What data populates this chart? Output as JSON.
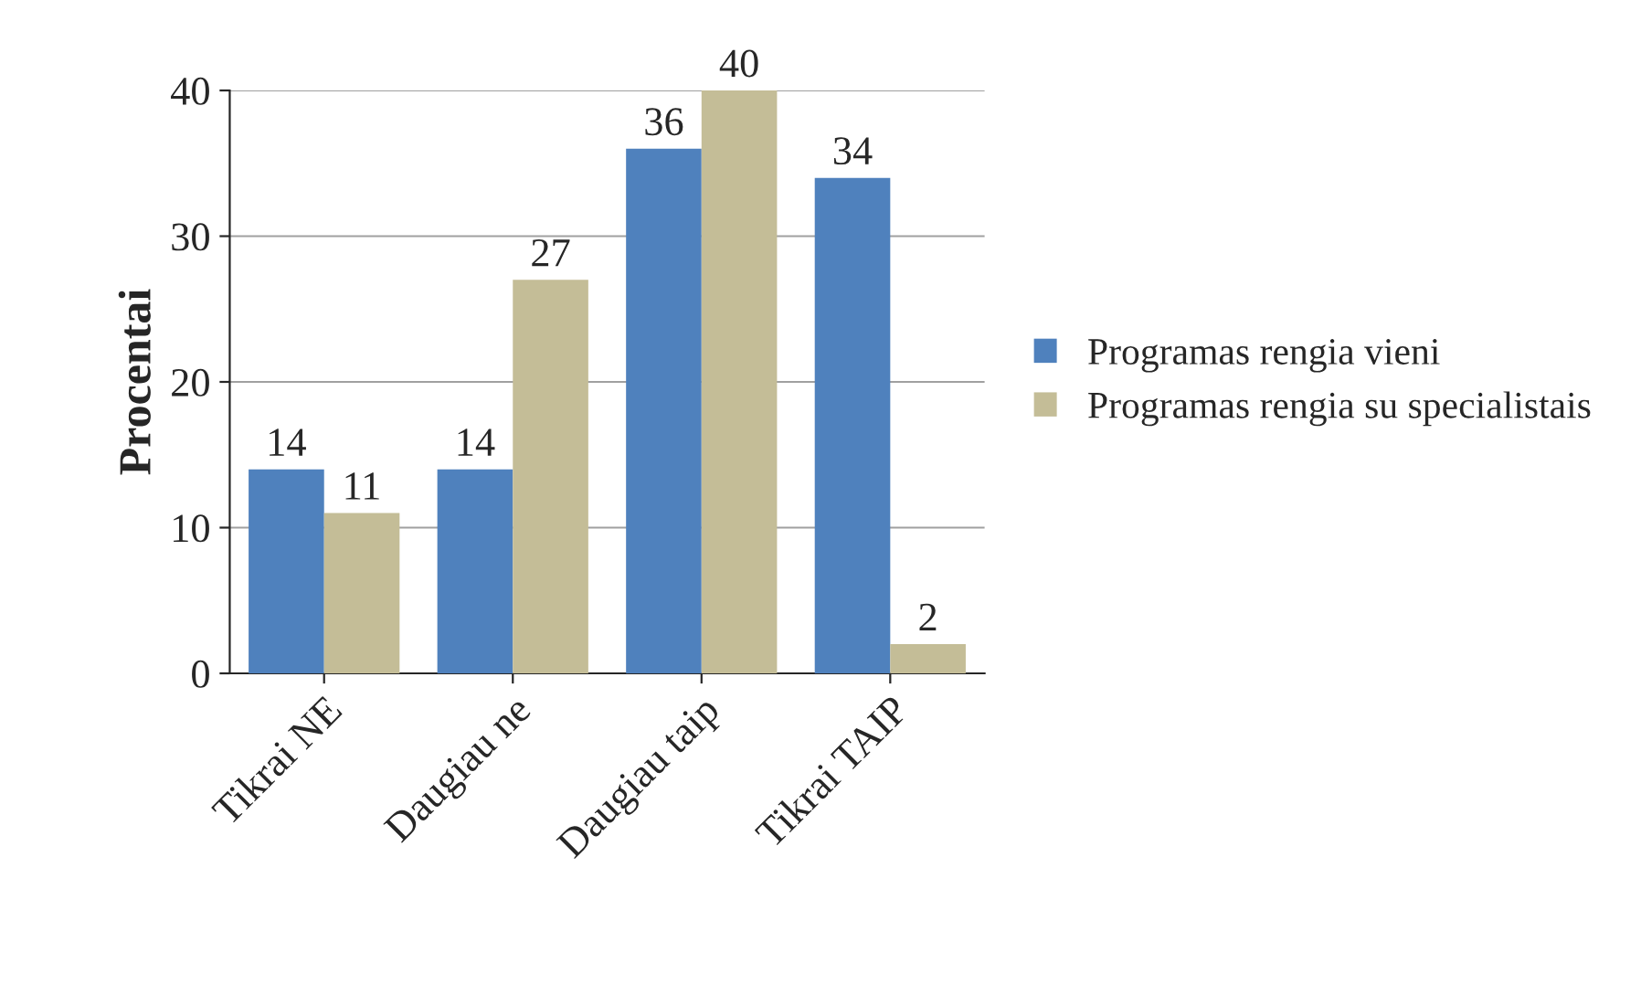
{
  "chart_data": {
    "type": "bar",
    "ylabel": "Procentai",
    "categories": [
      "Tikrai NE",
      "Daugiau ne",
      "Daugiau taip",
      "Tikrai TAIP"
    ],
    "series": [
      {
        "name": "Programas rengia vieni",
        "color": "#4f81bd",
        "values": [
          14,
          14,
          36,
          34
        ]
      },
      {
        "name": "Programas rengia su specialistais",
        "color": "#c4bd97",
        "values": [
          11,
          27,
          40,
          2
        ]
      }
    ],
    "ylim": [
      0,
      40
    ],
    "yticks": [
      0,
      10,
      20,
      30,
      40
    ],
    "grid": "y",
    "legend": "right",
    "data_labels": true
  }
}
